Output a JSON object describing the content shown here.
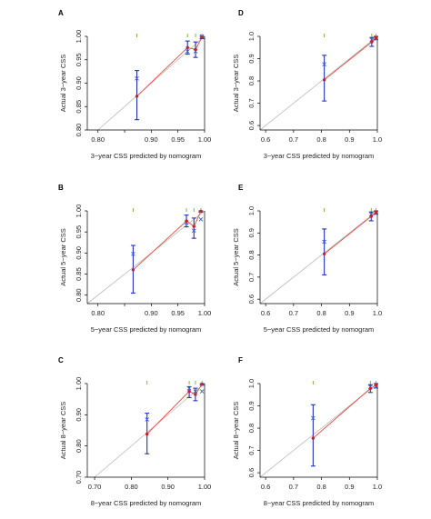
{
  "figure": {
    "colors": {
      "axis": "#000000",
      "ideal_line": "#bbbbbb",
      "fit_line": "#e8483c",
      "points": "#cc1f1f",
      "error_bars": "#2233bb",
      "corrected": "#3a5fd0",
      "rug": "#77aa33"
    }
  },
  "chart_data": [
    {
      "panel_label": "A",
      "type": "scatter",
      "xlabel": "3−year CSS predicted by nomogram",
      "ylabel": "Actual 3−year CSS",
      "xlim": [
        0.78,
        1.0
      ],
      "ylim": [
        0.8,
        1.0
      ],
      "xticks": [
        0.8,
        0.85,
        0.9,
        0.95,
        1.0
      ],
      "xtick_labels": [
        "0.80",
        "",
        "0.90",
        "0.95",
        "1.00"
      ],
      "yticks": [
        0.8,
        0.85,
        0.9,
        0.95,
        1.0
      ],
      "ytick_labels": [
        "0.80",
        "0.85",
        "0.90",
        "0.95",
        "1.00"
      ],
      "points": [
        {
          "x": 0.873,
          "y": 0.872,
          "lower": 0.822,
          "upper": 0.927,
          "corrected": 0.91
        },
        {
          "x": 0.968,
          "y": 0.976,
          "lower": 0.962,
          "upper": 0.99,
          "corrected": 0.968
        },
        {
          "x": 0.983,
          "y": 0.972,
          "lower": 0.955,
          "upper": 0.988,
          "corrected": 0.968
        },
        {
          "x": 0.995,
          "y": 0.998,
          "lower": 0.995,
          "upper": 1.0,
          "corrected": 1.0
        }
      ]
    },
    {
      "panel_label": "D",
      "type": "scatter",
      "xlabel": "3−year CSS predicted by nomogram",
      "ylabel": "Actual 3−year CSS",
      "xlim": [
        0.58,
        1.0
      ],
      "ylim": [
        0.58,
        1.0
      ],
      "xticks": [
        0.6,
        0.7,
        0.8,
        0.9,
        1.0
      ],
      "xtick_labels": [
        "0.6",
        "0.7",
        "0.8",
        "0.9",
        "1.0"
      ],
      "yticks": [
        0.6,
        0.7,
        0.8,
        0.9,
        1.0
      ],
      "ytick_labels": [
        "0.6",
        "0.7",
        "0.8",
        "0.9",
        "1.0"
      ],
      "points": [
        {
          "x": 0.81,
          "y": 0.805,
          "lower": 0.71,
          "upper": 0.915,
          "corrected": 0.875
        },
        {
          "x": 0.98,
          "y": 0.975,
          "lower": 0.955,
          "upper": 0.995,
          "corrected": 0.985
        },
        {
          "x": 0.995,
          "y": 0.995,
          "lower": 0.985,
          "upper": 1.0,
          "corrected": 0.99
        }
      ]
    },
    {
      "panel_label": "B",
      "type": "scatter",
      "xlabel": "5−year CSS predicted by nomogram",
      "ylabel": "Actual 5−year CSS",
      "xlim": [
        0.78,
        1.0
      ],
      "ylim": [
        0.78,
        1.0
      ],
      "xticks": [
        0.8,
        0.85,
        0.9,
        0.95,
        1.0
      ],
      "xtick_labels": [
        "0.80",
        "",
        "0.90",
        "0.95",
        "1.00"
      ],
      "yticks": [
        0.8,
        0.85,
        0.9,
        0.95,
        1.0
      ],
      "ytick_labels": [
        "0.80",
        "0.85",
        "0.90",
        "0.95",
        "1.00"
      ],
      "points": [
        {
          "x": 0.866,
          "y": 0.86,
          "lower": 0.805,
          "upper": 0.918,
          "corrected": 0.898
        },
        {
          "x": 0.966,
          "y": 0.976,
          "lower": 0.962,
          "upper": 0.99,
          "corrected": 0.972
        },
        {
          "x": 0.98,
          "y": 0.963,
          "lower": 0.935,
          "upper": 0.983,
          "corrected": 0.953
        },
        {
          "x": 0.993,
          "y": 0.999,
          "lower": 0.997,
          "upper": 1.0,
          "corrected": 0.98
        }
      ]
    },
    {
      "panel_label": "E",
      "type": "scatter",
      "xlabel": "5−year CSS predicted by nomogram",
      "ylabel": "Actual 5−year CSS",
      "xlim": [
        0.58,
        1.0
      ],
      "ylim": [
        0.58,
        1.0
      ],
      "xticks": [
        0.6,
        0.7,
        0.8,
        0.9,
        1.0
      ],
      "xtick_labels": [
        "0.6",
        "0.7",
        "0.8",
        "0.9",
        "1.0"
      ],
      "yticks": [
        0.6,
        0.7,
        0.8,
        0.9,
        1.0
      ],
      "ytick_labels": [
        "0.6",
        "0.7",
        "0.8",
        "0.9",
        "1.0"
      ],
      "points": [
        {
          "x": 0.81,
          "y": 0.805,
          "lower": 0.71,
          "upper": 0.918,
          "corrected": 0.86
        },
        {
          "x": 0.978,
          "y": 0.975,
          "lower": 0.955,
          "upper": 0.995,
          "corrected": 0.985
        },
        {
          "x": 0.995,
          "y": 0.995,
          "lower": 0.985,
          "upper": 1.0,
          "corrected": 0.99
        }
      ]
    },
    {
      "panel_label": "C",
      "type": "scatter",
      "xlabel": "8−year CSS predicted by nomogram",
      "ylabel": "Actual 8−year CSS",
      "xlim": [
        0.68,
        1.0
      ],
      "ylim": [
        0.7,
        1.0
      ],
      "xticks": [
        0.7,
        0.8,
        0.9,
        1.0
      ],
      "xtick_labels": [
        "0.70",
        "0.80",
        "0.90",
        "1.00"
      ],
      "yticks": [
        0.7,
        0.8,
        0.9,
        1.0
      ],
      "ytick_labels": [
        "0.70",
        "0.80",
        "0.90",
        "1.00"
      ],
      "points": [
        {
          "x": 0.843,
          "y": 0.838,
          "lower": 0.775,
          "upper": 0.905,
          "corrected": 0.885
        },
        {
          "x": 0.958,
          "y": 0.975,
          "lower": 0.955,
          "upper": 0.99,
          "corrected": 0.985
        },
        {
          "x": 0.975,
          "y": 0.965,
          "lower": 0.945,
          "upper": 0.985,
          "corrected": 0.975
        },
        {
          "x": 0.993,
          "y": 0.998,
          "lower": 0.995,
          "upper": 1.0,
          "corrected": 0.975
        }
      ]
    },
    {
      "panel_label": "F",
      "type": "scatter",
      "xlabel": "8−year CSS predicted by nomogram",
      "ylabel": "Actual 8−year CSS",
      "xlim": [
        0.58,
        1.0
      ],
      "ylim": [
        0.58,
        1.0
      ],
      "xticks": [
        0.6,
        0.7,
        0.8,
        0.9,
        1.0
      ],
      "xtick_labels": [
        "0.6",
        "0.7",
        "0.8",
        "0.9",
        "1.0"
      ],
      "yticks": [
        0.6,
        0.7,
        0.8,
        0.9,
        1.0
      ],
      "ytick_labels": [
        "0.6",
        "0.7",
        "0.8",
        "0.9",
        "1.0"
      ],
      "points": [
        {
          "x": 0.77,
          "y": 0.755,
          "lower": 0.63,
          "upper": 0.905,
          "corrected": 0.845
        },
        {
          "x": 0.975,
          "y": 0.978,
          "lower": 0.96,
          "upper": 0.995,
          "corrected": 0.985
        },
        {
          "x": 0.995,
          "y": 0.993,
          "lower": 0.98,
          "upper": 1.0,
          "corrected": 0.985
        }
      ]
    }
  ]
}
